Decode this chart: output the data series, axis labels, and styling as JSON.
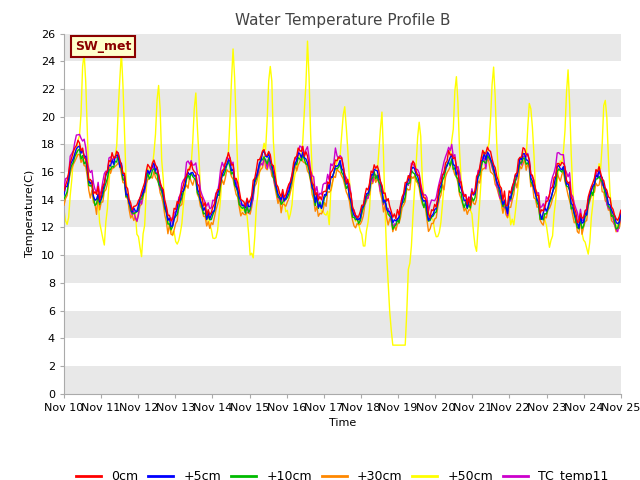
{
  "title": "Water Temperature Profile B",
  "xlabel": "Time",
  "ylabel": "Temperature(C)",
  "ylim": [
    0,
    26
  ],
  "yticks": [
    0,
    2,
    4,
    6,
    8,
    10,
    12,
    14,
    16,
    18,
    20,
    22,
    24,
    26
  ],
  "x_tick_labels": [
    "Nov 10",
    "Nov 11",
    "Nov 12",
    "Nov 13",
    "Nov 14",
    "Nov 15",
    "Nov 16",
    "Nov 17",
    "Nov 18",
    "Nov 19",
    "Nov 20",
    "Nov 21",
    "Nov 22",
    "Nov 23",
    "Nov 24",
    "Nov 25"
  ],
  "series_colors": {
    "0cm": "#ff0000",
    "+5cm": "#0000ff",
    "+10cm": "#00bb00",
    "+30cm": "#ff8800",
    "+50cm": "#ffff00",
    "TC_temp11": "#cc00cc"
  },
  "legend_items": [
    "0cm",
    "+5cm",
    "+10cm",
    "+30cm",
    "+50cm",
    "TC_temp11"
  ],
  "annotation_text": "SW_met",
  "annotation_color": "#8b0000",
  "annotation_bg": "#ffffcc",
  "annotation_border": "#8b0000",
  "fig_bg_color": "#ffffff",
  "plot_bg_color": "#ffffff",
  "band_color": "#e8e8e8",
  "grid_color": "#cccccc",
  "title_fontsize": 11,
  "axis_fontsize": 8,
  "legend_fontsize": 9
}
